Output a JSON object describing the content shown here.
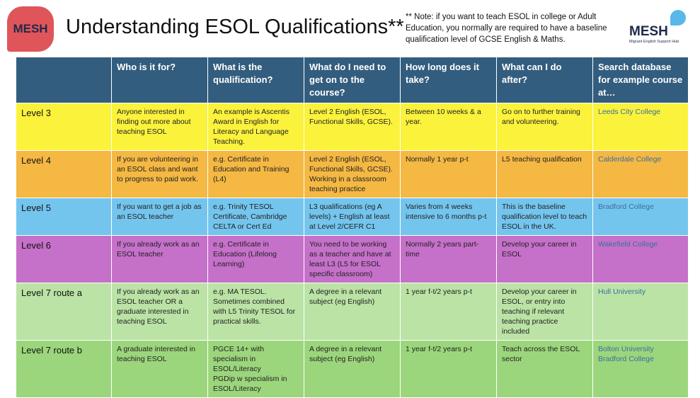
{
  "header": {
    "logo": "MESH",
    "title": "Understanding ESOL Qualifications**",
    "note": "** Note: if you want to teach ESOL in college or Adult Education, you normally are required to have a baseline qualification level of GCSE English & Maths.",
    "right_logo": "MESH",
    "right_logo_subtitle": "Migrant English Support Hub"
  },
  "table": {
    "columns": [
      "",
      "Who is it for?",
      "What is the qualification?",
      "What do I need to get on to the course?",
      "How long does it take?",
      "What can I do after?",
      "Search database for example course at…"
    ],
    "rows": [
      {
        "color": "#fbf23c",
        "cells": [
          "Level 3",
          "Anyone interested in finding out more about teaching ESOL",
          "An example is Ascentis Award in English for Literacy and Language Teaching.",
          "Level 2 English (ESOL, Functional Skills, GCSE).",
          "Between 10 weeks & a year.",
          "Go on to further training and volunteering.",
          "Leeds City College"
        ]
      },
      {
        "color": "#f4b843",
        "cells": [
          "Level 4",
          "If you are volunteering in an ESOL class and want to progress to paid work.",
          "e.g. Certificate in Education and Training (L4)",
          "Level 2 English (ESOL, Functional Skills, GCSE). Working in a classroom teaching practice",
          "Normally 1 year p-t",
          "L5 teaching qualification",
          "Calderdale College"
        ]
      },
      {
        "color": "#74c5ee",
        "cells": [
          "Level 5",
          "If you want to get a job as an ESOL teacher",
          "e.g. Trinity TESOL Certificate, Cambridge CELTA or Cert Ed",
          "L3 qualifications (eg A levels) + English at least at Level 2/CEFR C1",
          "Varies from 4 weeks intensive to 6 months p-t",
          "This is the baseline qualification level to teach ESOL in the UK.",
          "Bradford College"
        ]
      },
      {
        "color": "#c570c9",
        "cells": [
          "Level 6",
          "If you already work as an ESOL teacher",
          "e.g. Certificate in Education (Lifelong Learning)",
          "You need to be working as a teacher and have at least L3 (L5 for ESOL specific classroom)",
          "Normally 2 years part-time",
          "Develop your career in ESOL",
          "Wakefield College"
        ]
      },
      {
        "color": "#bae3a5",
        "cells": [
          "Level 7 route a",
          "If you already work as an ESOL teacher OR a graduate interested in teaching ESOL",
          "e.g. MA TESOL. Sometimes  combined with L5 Trinity TESOL for practical skills.",
          "A degree in a relevant subject (eg English)",
          "1 year f-t/2 years p-t",
          "Develop your career in ESOL, or entry into teaching if relevant teaching practice included",
          "Hull University"
        ]
      },
      {
        "color": "#9cd67c",
        "cells": [
          "Level 7 route b",
          "A graduate interested in teaching ESOL",
          "PGCE 14+ with specialism in ESOL/Literacy\nPGDip w specialism in ESOL/Literacy",
          "A degree in a relevant subject (eg English)",
          "1 year f-t/2 years p-t",
          "Teach across the ESOL sector",
          "Bolton University\nBradford College"
        ]
      }
    ]
  }
}
